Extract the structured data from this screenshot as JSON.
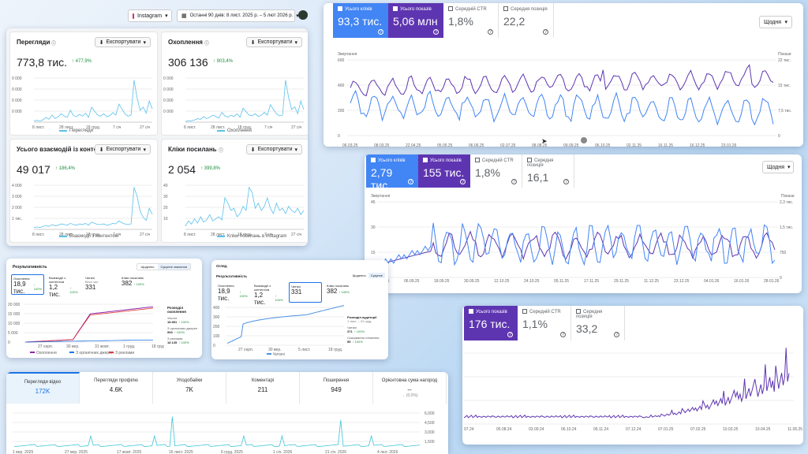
{
  "topbar": {
    "platform": "Instagram",
    "date_range": "Останні 90 днів: 8 лист. 2025 р. – 5 лют 2026 р."
  },
  "ig_cards": [
    {
      "title": "Перегляди",
      "value": "773,8 тис.",
      "delta": "↑ 477,9%",
      "export": "Експортувати",
      "yticks": [
        "0 000",
        "0 000",
        "0 000",
        "0 000"
      ],
      "xticks": [
        "8 лист.",
        "28 лист.",
        "18 груд.",
        "7 січ",
        "27 січ"
      ],
      "legend": "Перегляди",
      "series": [
        2,
        3,
        2,
        4,
        8,
        5,
        12,
        6,
        9,
        14,
        10,
        8,
        20,
        11,
        9,
        13,
        10,
        15,
        8,
        25,
        18,
        12,
        10,
        14,
        9,
        11,
        16,
        12,
        30,
        22,
        14,
        10,
        12,
        70,
        40,
        20,
        25,
        15,
        35,
        22
      ]
    },
    {
      "title": "Охоплення",
      "value": "306 136",
      "delta": "↑ 903,4%",
      "export": "Експортувати",
      "yticks": [
        "0 000",
        "0 000",
        "0 000",
        "0 000"
      ],
      "xticks": [
        "8 лист.",
        "28 лист.",
        "18 груд.",
        "7 січ",
        "27 січ"
      ],
      "legend": "Охоплення",
      "series": [
        1,
        2,
        2,
        3,
        5,
        4,
        8,
        5,
        7,
        10,
        8,
        6,
        14,
        9,
        7,
        10,
        8,
        12,
        7,
        20,
        15,
        10,
        9,
        12,
        8,
        10,
        14,
        10,
        25,
        18,
        12,
        9,
        10,
        60,
        35,
        18,
        22,
        12,
        30,
        18
      ]
    },
    {
      "title": "Усього взаємодій із контентом",
      "value": "49 017",
      "delta": "↑ 186,4%",
      "export": "Експортувати",
      "yticks": [
        "4 000",
        "3 000",
        "2 000",
        "1 тис."
      ],
      "xticks": [
        "8 лист.",
        "28 лист.",
        "18 груд.",
        "7 січ",
        "27 січ"
      ],
      "legend": "Взаємодії з контентом",
      "series": [
        3,
        4,
        3,
        5,
        6,
        5,
        8,
        6,
        7,
        9,
        8,
        7,
        10,
        8,
        7,
        9,
        8,
        10,
        7,
        12,
        10,
        8,
        8,
        9,
        7,
        8,
        10,
        9,
        14,
        11,
        9,
        8,
        9,
        70,
        55,
        30,
        20,
        15,
        35,
        25
      ]
    },
    {
      "title": "Кліки посилань",
      "value": "2 054",
      "delta": "↑ 399,8%",
      "export": "Експортувати",
      "yticks": [
        "40",
        "30",
        "20",
        "10"
      ],
      "xticks": [
        "8 лист.",
        "28 лист.",
        "18 груд.",
        "7 січ",
        "27 січ"
      ],
      "legend": "Кліки посилань в Instagram",
      "series": [
        3,
        8,
        5,
        10,
        6,
        12,
        7,
        9,
        14,
        8,
        10,
        12,
        9,
        30,
        25,
        18,
        20,
        12,
        15,
        22,
        18,
        40,
        35,
        20,
        25,
        18,
        22,
        30,
        20,
        15,
        25,
        18,
        20,
        15,
        22,
        18,
        16,
        20,
        14,
        18
      ]
    }
  ],
  "gsc_top": {
    "tiles": [
      {
        "label": "Усього кліків",
        "value": "93,3 тис.",
        "on": true,
        "color": "#4285f4"
      },
      {
        "label": "Усього показів",
        "value": "5,06 млн",
        "on": true,
        "color": "#5e35b1"
      },
      {
        "label": "Середній CTR",
        "value": "1,8%",
        "on": false,
        "color": ""
      },
      {
        "label": "Середня позиція",
        "value": "22,2",
        "on": false,
        "color": ""
      }
    ],
    "period": "Щодня",
    "left_label": "Звертання",
    "right_label": "Покази",
    "yticks_left": [
      "600",
      "400",
      "200",
      "0"
    ],
    "yticks_right": [
      "22 тис.",
      "15 тис.",
      "7,5 тис.",
      "0"
    ],
    "xticks": [
      "06.03.25",
      "08.03.25",
      "22.04.25",
      "05.05.25",
      "06.06.25",
      "02.07.25",
      "08.08.25",
      "09.09.25",
      "06.10.25",
      "02.11.25",
      "16.11.25",
      "16.12.25",
      "23.01.26"
    ]
  },
  "gsc_mid": {
    "tiles": [
      {
        "label": "Усього кліків",
        "value": "2,79 тис.",
        "on": true,
        "color": "#4285f4"
      },
      {
        "label": "Усього показів",
        "value": "155 тис.",
        "on": true,
        "color": "#5e35b1"
      },
      {
        "label": "Середній CTR",
        "value": "1,8%",
        "on": false,
        "color": ""
      },
      {
        "label": "Середня позиція",
        "value": "16,1",
        "on": false,
        "color": ""
      }
    ],
    "period": "Щодня",
    "left_label": "Звертання",
    "right_label": "Покази",
    "yticks_left": [
      "45",
      "30",
      "15",
      "0"
    ],
    "yticks_right": [
      "2,3 тис.",
      "1,5 тис.",
      "750",
      "0"
    ],
    "xticks": [
      "25.08.25",
      "06.09.25",
      "18.09.25",
      "30.09.25",
      "12.10.25",
      "24.10.25",
      "05.11.25",
      "17.11.25",
      "29.11.25",
      "11.12.25",
      "23.12.25",
      "04.01.26",
      "16.01.26",
      "28.01.26"
    ]
  },
  "gsc_right": {
    "tiles": [
      {
        "label": "Усього показів",
        "value": "176 тис.",
        "on": true,
        "color": "#5e35b1"
      },
      {
        "label": "Середній CTR",
        "value": "1,1%",
        "on": false,
        "color": ""
      },
      {
        "label": "Середня позиція",
        "value": "33,2",
        "on": false,
        "color": ""
      }
    ],
    "xticks": [
      "07.24",
      "05.08.24",
      "03.09.24",
      "06.10.24",
      "06.11.24",
      "07.12.24",
      "07.01.25",
      "07.02.25",
      "10.03.25",
      "10.04.25",
      "11.05.25"
    ]
  },
  "fb_left": {
    "title": "Результативність",
    "tabs": [
      "Щоденно",
      "Сукупне значення"
    ],
    "metrics": [
      {
        "label": "Охоплення",
        "value": "18,9 тис.",
        "delta": "↑ 100%"
      },
      {
        "label": "Взаємодії з контентом",
        "value": "1,2 тис.",
        "delta": "↑ 100%"
      },
      {
        "label": "Читачі",
        "sub": "Весь час",
        "value": "331",
        "delta": ""
      },
      {
        "label": "Кліки посилань",
        "value": "382",
        "delta": "↑ 100%"
      }
    ],
    "yticks": [
      "20 000",
      "15 000",
      "10 000",
      "5 000",
      "0"
    ],
    "xticks": [
      "27 серп.",
      "30 вер.",
      "31 жовт.",
      "1 груд.",
      "18 груд."
    ],
    "legend": [
      "Охоплення",
      "З органічних джерел",
      "З реклами"
    ],
    "side_title": "Розподіл охоплення",
    "side": [
      {
        "label": "Усього",
        "value": "18 851",
        "delta": "↑ 100%"
      },
      {
        "label": "З органічних джерел",
        "value": "993",
        "delta": "↑ 100%"
      },
      {
        "label": "З реклами",
        "value": "18 135",
        "delta": "↑ 100%"
      }
    ]
  },
  "fb_mid": {
    "title": "Огляд",
    "subtitle": "Результативність",
    "tabs": [
      "Щоденно",
      "Сукупне"
    ],
    "metrics": [
      {
        "label": "Охоплення",
        "value": "18,9 тис.",
        "delta": "↑ 100%"
      },
      {
        "label": "Взаємодії з контентом",
        "value": "1,2 тис.",
        "delta": "↑ 100%"
      },
      {
        "label": "Читачі",
        "value": "331",
        "delta": ""
      },
      {
        "label": "Кліки посилань",
        "value": "382",
        "delta": "↑ 100%"
      }
    ],
    "yticks": [
      "400",
      "300",
      "200",
      "100",
      "0"
    ],
    "xticks": [
      "27 серп.",
      "30 вер.",
      "5 лист.",
      "18 груд."
    ],
    "legend": "Читачі",
    "side_title": "Розподіл аудиторії",
    "side_sub": "1 лист. – 31 груд.",
    "side": [
      {
        "label": "Читачі",
        "value": "371",
        "delta": "↑ 100%"
      },
      {
        "label": "Скасування стеження",
        "value": "55",
        "delta": "↑ 100%"
      }
    ]
  },
  "tiktok": {
    "tabs": [
      {
        "label": "Перегляди відео",
        "value": "172K"
      },
      {
        "label": "Перегляди профілю",
        "value": "4.6K"
      },
      {
        "label": "Уподобайки",
        "value": "7K"
      },
      {
        "label": "Коментарі",
        "value": "211"
      },
      {
        "label": "Поширення",
        "value": "949"
      },
      {
        "label": "Орієнтовна сума нагород",
        "value": "--",
        "sub": "→ (0.0%)"
      }
    ],
    "yticks": [
      "6,000",
      "4,500",
      "3,000",
      "1,500"
    ],
    "xticks": [
      "1 вер. 2025",
      "27 вер. 2025",
      "17 жовт. 2025",
      "16 лист. 2025",
      "6 груд. 2025",
      "1 січ. 2026",
      "21 січ. 2026",
      "4 лют. 2026"
    ]
  },
  "colors": {
    "ig_line": "#5bc0eb",
    "gsc_clicks": "#4285f4",
    "gsc_impr": "#5e35b1",
    "tiktok": "#40c4d8"
  }
}
